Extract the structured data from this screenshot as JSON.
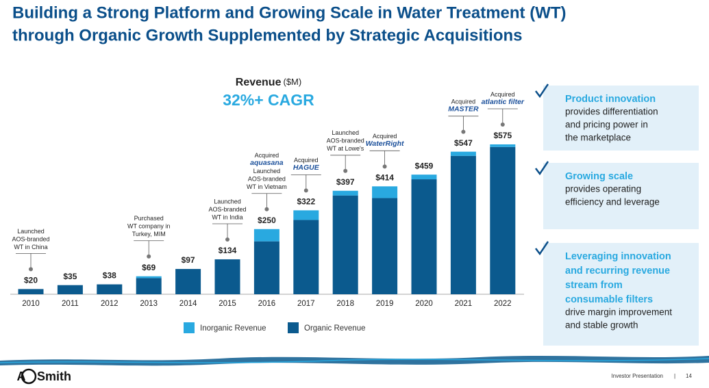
{
  "header": {
    "title_lines": [
      "Building a Strong Platform and Growing Scale in Water Treatment (WT)",
      "through Organic Growth Supplemented by Strategic Acquisitions"
    ]
  },
  "chart_data": {
    "type": "stacked_bar",
    "title": "Revenue",
    "title_unit": "($M)",
    "subtitle": "32%+ CAGR",
    "categories": [
      "2010",
      "2011",
      "2012",
      "2013",
      "2014",
      "2015",
      "2016",
      "2017",
      "2018",
      "2019",
      "2020",
      "2021",
      "2022"
    ],
    "series": [
      {
        "name": "Inorganic Revenue",
        "color": "#29a9e0",
        "values": [
          0,
          0,
          0,
          7,
          0,
          0,
          47,
          37,
          18,
          45,
          18,
          16,
          10
        ]
      },
      {
        "name": "Organic Revenue",
        "color": "#0b5a8e",
        "values": [
          20,
          35,
          38,
          62,
          97,
          134,
          203,
          285,
          379,
          369,
          441,
          531,
          565
        ]
      }
    ],
    "totals": [
      20,
      35,
      38,
      69,
      97,
      134,
      250,
      322,
      397,
      414,
      459,
      547,
      575
    ],
    "total_labels": [
      "$20",
      "$35",
      "$38",
      "$69",
      "$97",
      "$134",
      "$250",
      "$322",
      "$397",
      "$414",
      "$459",
      "$547",
      "$575"
    ],
    "ylim": [
      0,
      575
    ],
    "annotations": [
      {
        "category": "2010",
        "lines": [
          "Launched",
          "AOS-branded",
          "WT in China"
        ]
      },
      {
        "category": "2013",
        "lines": [
          "Purchased",
          "WT company in",
          "Turkey, MIM"
        ]
      },
      {
        "category": "2015",
        "lines": [
          "Launched",
          "AOS-branded",
          "WT in India"
        ]
      },
      {
        "category": "2016",
        "lines": [
          "Acquired",
          {
            "logo": "aquasana"
          },
          "Launched",
          "AOS-branded",
          "WT in Vietnam"
        ]
      },
      {
        "category": "2017",
        "lines": [
          "Acquired",
          {
            "logo": "HAGUE"
          }
        ]
      },
      {
        "category": "2018",
        "lines": [
          "Launched",
          "AOS-branded",
          "WT at Lowe's"
        ]
      },
      {
        "category": "2019",
        "lines": [
          "Acquired",
          {
            "logo": "WaterRight"
          }
        ]
      },
      {
        "category": "2021",
        "lines": [
          "Acquired",
          {
            "logo": "MASTER"
          }
        ]
      },
      {
        "category": "2022",
        "lines": [
          "Acquired",
          {
            "logo": "atlantic filter"
          }
        ]
      }
    ]
  },
  "panels": [
    {
      "highlight": [
        "Product innovation"
      ],
      "body": [
        "provides differentiation",
        "and pricing power in",
        "the marketplace"
      ]
    },
    {
      "highlight": [
        "Growing scale"
      ],
      "body": [
        "provides operating",
        "efficiency and leverage"
      ]
    },
    {
      "highlight": [
        "Leveraging innovation",
        "and recurring revenue",
        "stream from",
        "consumable filters"
      ],
      "body": [
        "drive margin improvement",
        "and stable growth"
      ]
    }
  ],
  "footer": {
    "logo_a": "A",
    "logo_o": "O",
    "logo_rest": "Smith",
    "label": "Investor Presentation",
    "separator": "|",
    "page": "14"
  }
}
